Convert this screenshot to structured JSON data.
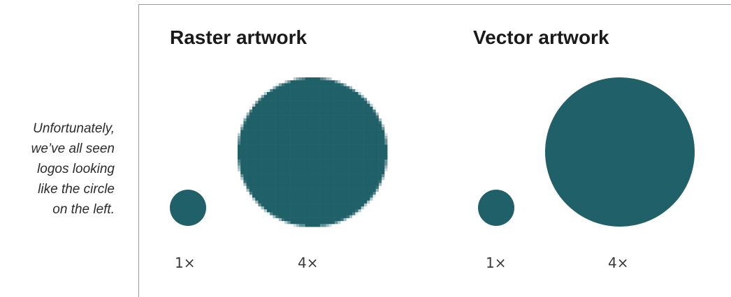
{
  "caption": {
    "lines": [
      "Unfortunately,",
      "we’ve all seen",
      "logos looking",
      "like the circle",
      "on the left."
    ]
  },
  "raster": {
    "title": "Raster artwork",
    "small_label": "1×",
    "large_label": "4×"
  },
  "vector": {
    "title": "Vector artwork",
    "small_label": "1×",
    "large_label": "4×"
  },
  "colors": {
    "circle": "#206068",
    "frame": "#9a9a9a"
  }
}
